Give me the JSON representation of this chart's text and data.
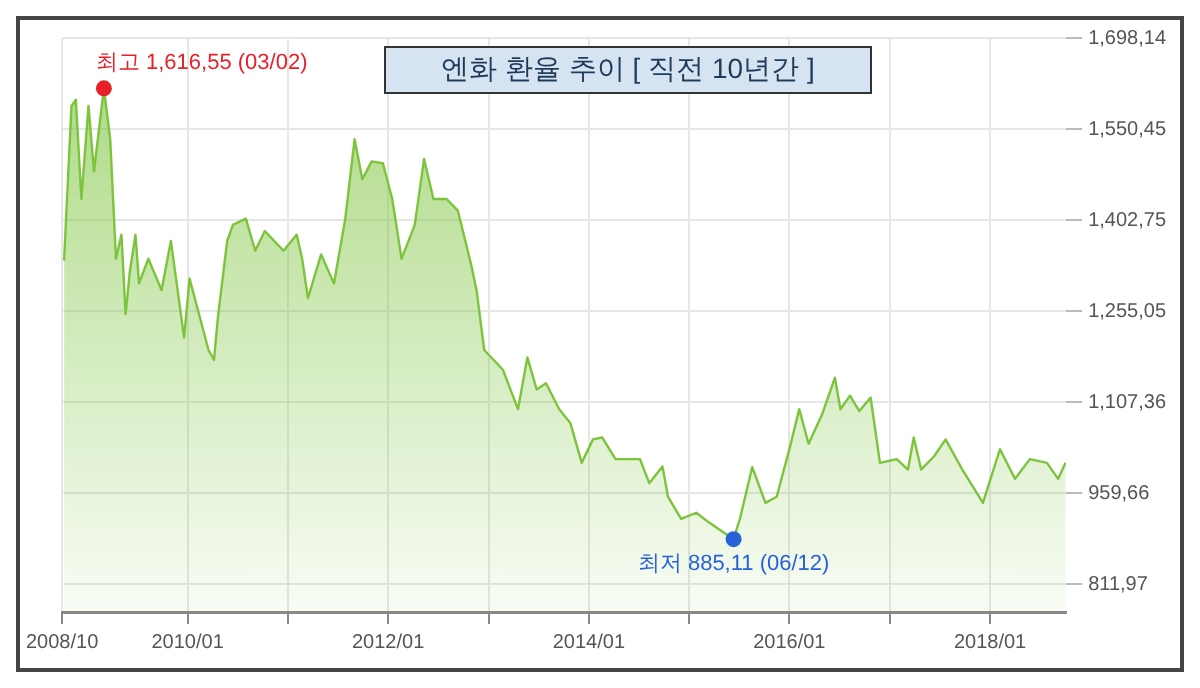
{
  "chart_data": {
    "type": "area",
    "title": "엔화 환율 추이 [ 직전 10년간 ]",
    "color": "#7cc43c",
    "x": [
      "2008-10-08",
      "2008-11-04",
      "2008-11-20",
      "2008-12-10",
      "2009-01-05",
      "2009-01-25",
      "2009-03-02",
      "2009-03-25",
      "2009-04-15",
      "2009-05-05",
      "2009-05-20",
      "2009-06-05",
      "2009-06-25",
      "2009-07-08",
      "2009-08-11",
      "2009-09-28",
      "2009-11-01",
      "2009-12-19",
      "2010-01-08",
      "2010-03-18",
      "2010-04-07",
      "2010-04-21",
      "2010-05-25",
      "2010-06-15",
      "2010-08-01",
      "2010-09-04",
      "2010-10-09",
      "2010-12-16",
      "2011-02-02",
      "2011-02-22",
      "2011-03-15",
      "2011-05-02",
      "2011-06-18",
      "2011-07-29",
      "2011-09-01",
      "2011-09-29",
      "2011-11-02",
      "2011-12-13",
      "2012-01-16",
      "2012-02-19",
      "2012-04-07",
      "2012-05-11",
      "2012-06-14",
      "2012-08-01",
      "2012-09-11",
      "2012-10-29",
      "2012-11-18",
      "2012-12-16",
      "2013-02-22",
      "2013-04-18",
      "2013-05-22",
      "2013-06-25",
      "2013-07-29",
      "2013-09-15",
      "2013-10-26",
      "2013-12-06",
      "2014-01-16",
      "2014-02-19",
      "2014-04-08",
      "2014-07-06",
      "2014-08-09",
      "2014-09-26",
      "2014-10-16",
      "2014-12-03",
      "2015-01-27",
      "2015-03-15",
      "2015-06-12",
      "2015-07-05",
      "2015-08-19",
      "2015-10-06",
      "2015-11-16",
      "2016-01-03",
      "2016-02-06",
      "2016-03-11",
      "2016-04-28",
      "2016-06-15",
      "2016-07-05",
      "2016-08-09",
      "2016-09-12",
      "2016-10-23",
      "2016-11-26",
      "2017-01-26",
      "2017-03-08",
      "2017-03-29",
      "2017-04-25",
      "2017-06-12",
      "2017-07-23",
      "2017-09-22",
      "2017-12-06",
      "2018-02-06",
      "2018-04-02",
      "2018-05-26",
      "2018-07-27",
      "2018-09-06",
      "2018-10-03"
    ],
    "values": [
      1337,
      1588,
      1598,
      1437,
      1588,
      1482,
      1616.55,
      1534,
      1340,
      1379,
      1250,
      1321,
      1379,
      1300,
      1340,
      1289,
      1369,
      1212,
      1308,
      1192,
      1176,
      1244,
      1369,
      1395,
      1405,
      1353,
      1385,
      1353,
      1379,
      1340,
      1276,
      1347,
      1300,
      1405,
      1534,
      1469,
      1498,
      1495,
      1437,
      1340,
      1395,
      1502,
      1437,
      1437,
      1418,
      1331,
      1289,
      1192,
      1160,
      1096,
      1180,
      1128,
      1138,
      1096,
      1073,
      1009,
      1047,
      1050,
      1015,
      1015,
      976,
      1003,
      954,
      918,
      928,
      912,
      885.11,
      918,
      1002,
      944,
      954,
      1034,
      1096,
      1040,
      1086,
      1147,
      1096,
      1118,
      1093,
      1115,
      1009,
      1015,
      998,
      1050,
      998,
      1020,
      1047,
      998,
      944,
      1031,
      983,
      1015,
      1009,
      983,
      1009
    ],
    "xlim": [
      "2008-10-01",
      "2018-10-05"
    ],
    "xticks": [
      {
        "value": "2008-10-01",
        "label": "2008/10"
      },
      {
        "value": "2010-01-01",
        "label": "2010/01"
      },
      {
        "value": "2011-01-01",
        "label": null
      },
      {
        "value": "2012-01-01",
        "label": "2012/01"
      },
      {
        "value": "2013-01-01",
        "label": null
      },
      {
        "value": "2014-01-01",
        "label": "2014/01"
      },
      {
        "value": "2015-01-01",
        "label": null
      },
      {
        "value": "2016-01-01",
        "label": "2016/01"
      },
      {
        "value": "2017-01-01",
        "label": null
      },
      {
        "value": "2018-01-01",
        "label": "2018/01"
      }
    ],
    "ylim": [
      767,
      1698.14
    ],
    "yticks": [
      {
        "value": 811.97,
        "label": "811,97"
      },
      {
        "value": 959.66,
        "label": "959,66"
      },
      {
        "value": 1107.36,
        "label": "1,107,36"
      },
      {
        "value": 1255.05,
        "label": "1,255,05"
      },
      {
        "value": 1402.75,
        "label": "1,402,75"
      },
      {
        "value": 1550.45,
        "label": "1,550,45"
      },
      {
        "value": 1698.14,
        "label": "1,698,14"
      }
    ],
    "grid": true,
    "annotations": [
      {
        "text": "최고 1,616,55 (03/02)",
        "x": "2009-03-02",
        "y": 1616.55
      },
      {
        "text": "최저 885,11 (06/12)",
        "x": "2015-06-12",
        "y": 885.11
      }
    ]
  }
}
